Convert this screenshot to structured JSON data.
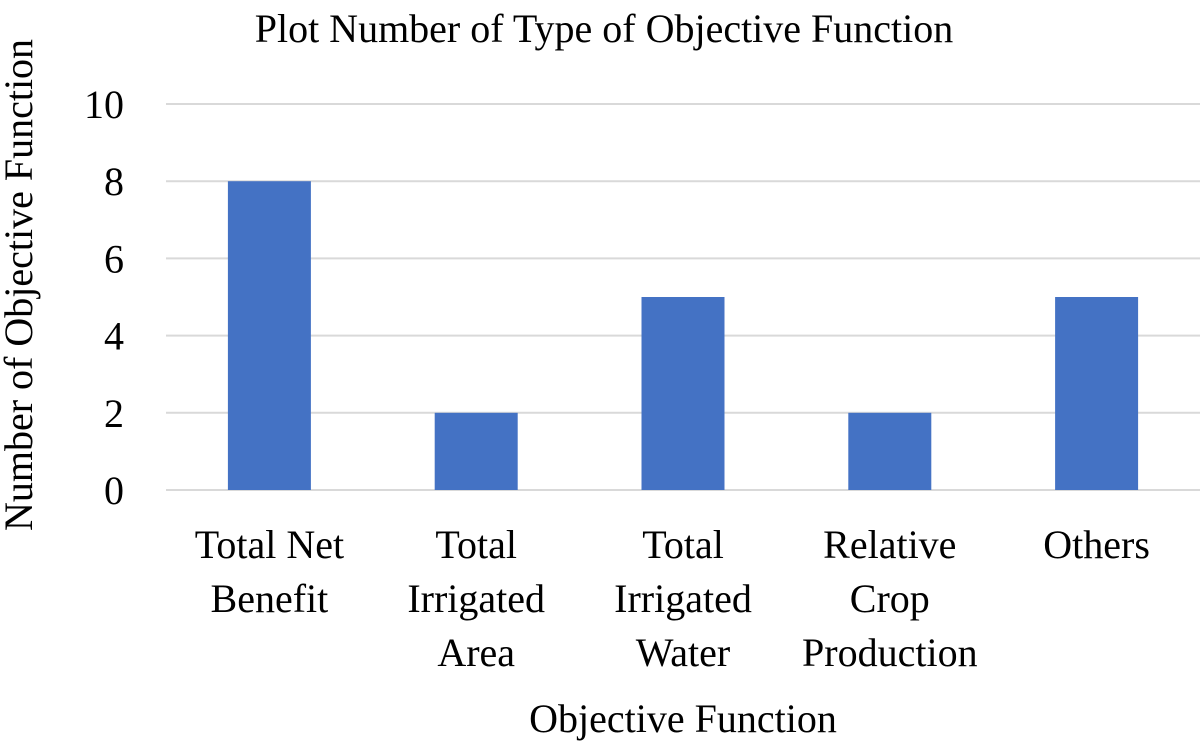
{
  "chart_data": {
    "type": "bar",
    "title": "Plot Number of Type of Objective Function",
    "xlabel": "Objective Function",
    "ylabel": "Number of Objective Function",
    "categories": [
      [
        "Total Net",
        "Benefit"
      ],
      [
        "Total",
        "Irrigated",
        "Area"
      ],
      [
        "Total",
        "Irrigated",
        "Water"
      ],
      [
        "Relative",
        "Crop",
        "Production"
      ],
      [
        "Others"
      ]
    ],
    "values": [
      8,
      2,
      5,
      2,
      5
    ],
    "ylim": [
      0,
      10
    ],
    "yticks": [
      "0",
      "2",
      "4",
      "6",
      "8",
      "10"
    ],
    "grid": true,
    "legend": "none",
    "colors": {
      "bar": "#4472C4",
      "grid": "#D9D9D9",
      "text": "#000000"
    }
  }
}
